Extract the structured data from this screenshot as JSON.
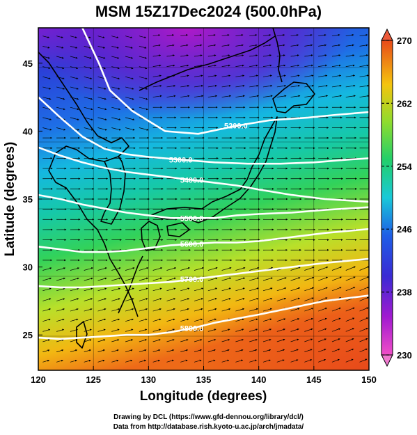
{
  "title": "MSM 15Z17Dec2024 (500.0hPa)",
  "xlabel": "Longitude (degrees)",
  "ylabel": "Latitude  (degrees)",
  "footer_line1": "Drawing by DCL (https://www.gfd-dennou.org/library/dcl/)",
  "footer_line2": "Data from http://database.rish.kyoto-u.ac.jp/arch/jmadata/",
  "chart_data": {
    "type": "heatmap",
    "variable": "temperature with height contours and wind vectors",
    "x_range": [
      120,
      150
    ],
    "y_range": [
      22.4,
      47.6
    ],
    "x_ticks": [
      120,
      125,
      130,
      135,
      140,
      145,
      150
    ],
    "y_ticks": [
      25,
      30,
      35,
      40,
      45
    ],
    "colorbar": {
      "min": 230,
      "max": 270,
      "tick_labels": [
        270,
        262,
        254,
        246,
        238,
        230
      ],
      "colors": [
        "#d61ac4",
        "#5a1fd0",
        "#1e5ee6",
        "#19c9d8",
        "#2ed35a",
        "#c9e52a",
        "#f7a10a",
        "#e84a1a"
      ]
    },
    "contours": [
      {
        "label": "5200.0",
        "points": [
          [
            124.0,
            47.6
          ],
          [
            125.5,
            45.0
          ],
          [
            126.5,
            43.0
          ],
          [
            128.5,
            41.5
          ],
          [
            131.5,
            40.0
          ],
          [
            134.5,
            39.8
          ],
          [
            138.0,
            40.4
          ],
          [
            141.0,
            40.8
          ],
          [
            144.5,
            41.0
          ],
          [
            147.0,
            41.2
          ],
          [
            150.0,
            41.4
          ]
        ]
      },
      {
        "label": "5300.0",
        "points": [
          [
            120.0,
            42.5
          ],
          [
            122.0,
            41.0
          ],
          [
            124.0,
            39.6
          ],
          [
            126.0,
            38.7
          ],
          [
            128.0,
            38.3
          ],
          [
            130.0,
            38.1
          ],
          [
            133.0,
            37.9
          ],
          [
            136.0,
            37.7
          ],
          [
            139.0,
            37.6
          ],
          [
            142.0,
            37.6
          ],
          [
            145.0,
            37.7
          ],
          [
            148.0,
            37.9
          ],
          [
            150.0,
            38.0
          ]
        ]
      },
      {
        "label": "5400.0",
        "points": [
          [
            120.0,
            38.8
          ],
          [
            122.0,
            38.2
          ],
          [
            124.0,
            37.7
          ],
          [
            126.0,
            37.3
          ],
          [
            128.0,
            37.0
          ],
          [
            130.0,
            36.8
          ],
          [
            132.0,
            36.6
          ],
          [
            134.0,
            36.4
          ],
          [
            136.0,
            36.2
          ],
          [
            138.0,
            36.0
          ],
          [
            140.0,
            35.7
          ],
          [
            143.0,
            35.3
          ],
          [
            146.0,
            35.0
          ],
          [
            150.0,
            34.8
          ]
        ]
      },
      {
        "label": "5500.0",
        "points": [
          [
            120.0,
            35.3
          ],
          [
            122.0,
            35.0
          ],
          [
            124.0,
            34.6
          ],
          [
            126.0,
            34.3
          ],
          [
            128.0,
            34.0
          ],
          [
            130.0,
            33.8
          ],
          [
            132.0,
            33.6
          ],
          [
            134.0,
            33.6
          ],
          [
            136.0,
            33.6
          ],
          [
            138.0,
            33.8
          ],
          [
            140.0,
            33.9
          ],
          [
            143.0,
            34.0
          ],
          [
            146.0,
            34.2
          ],
          [
            150.0,
            34.4
          ]
        ]
      },
      {
        "label": "5600.0",
        "points": [
          [
            120.0,
            31.5
          ],
          [
            122.0,
            31.3
          ],
          [
            124.0,
            31.1
          ],
          [
            126.0,
            31.1
          ],
          [
            128.0,
            31.2
          ],
          [
            130.0,
            31.4
          ],
          [
            132.0,
            31.6
          ],
          [
            134.0,
            31.7
          ],
          [
            136.0,
            31.8
          ],
          [
            138.0,
            31.8
          ],
          [
            140.0,
            31.9
          ],
          [
            143.0,
            32.2
          ],
          [
            146.0,
            32.5
          ],
          [
            150.0,
            32.8
          ]
        ]
      },
      {
        "label": "5700.0",
        "points": [
          [
            120.0,
            28.6
          ],
          [
            122.0,
            28.5
          ],
          [
            124.0,
            28.5
          ],
          [
            126.0,
            28.6
          ],
          [
            128.0,
            28.7
          ],
          [
            130.0,
            28.8
          ],
          [
            132.0,
            28.9
          ],
          [
            134.0,
            29.1
          ],
          [
            136.0,
            29.3
          ],
          [
            138.0,
            29.5
          ],
          [
            140.0,
            29.7
          ],
          [
            143.0,
            30.0
          ],
          [
            146.0,
            30.3
          ],
          [
            150.0,
            30.6
          ]
        ]
      },
      {
        "label": "5800.0",
        "points": [
          [
            120.0,
            24.8
          ],
          [
            122.0,
            24.7
          ],
          [
            124.0,
            24.8
          ],
          [
            126.0,
            24.9
          ],
          [
            128.0,
            25.0
          ],
          [
            130.0,
            25.0
          ],
          [
            132.0,
            25.2
          ],
          [
            134.0,
            25.5
          ],
          [
            136.0,
            25.9
          ],
          [
            138.0,
            26.2
          ],
          [
            140.0,
            26.5
          ],
          [
            143.0,
            27.0
          ],
          [
            146.0,
            27.5
          ],
          [
            150.0,
            27.9
          ]
        ]
      }
    ]
  }
}
